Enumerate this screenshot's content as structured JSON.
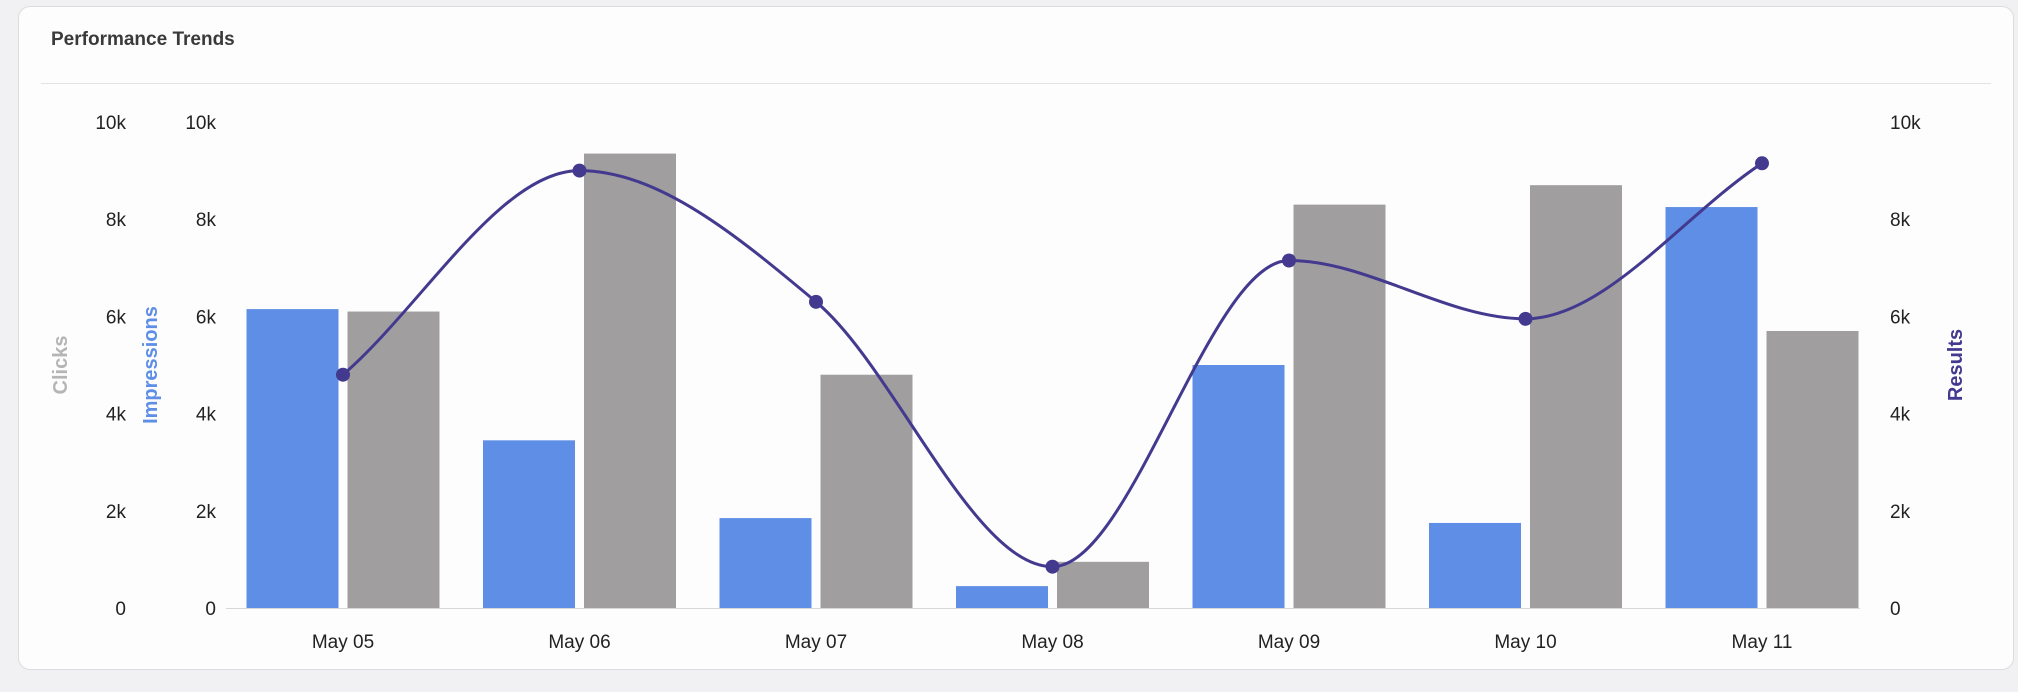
{
  "card": {
    "title": "Performance Trends"
  },
  "colors": {
    "clicks": "#a09e9f",
    "impressions": "#5e8ee5",
    "results": "#433a8f",
    "axis_clicks_title": "#b5b5b5",
    "axis_impressions_title": "#5e8ee5",
    "axis_results_title": "#433a8f"
  },
  "chart_data": {
    "type": "bar",
    "categories": [
      "May 05",
      "May 06",
      "May 07",
      "May 08",
      "May 09",
      "May 10",
      "May 11"
    ],
    "series": [
      {
        "name": "Impressions",
        "type": "bar",
        "axis": "impressions",
        "values": [
          6150,
          3450,
          1850,
          450,
          5000,
          1750,
          8250
        ]
      },
      {
        "name": "Clicks",
        "type": "bar",
        "axis": "clicks",
        "values": [
          6100,
          9350,
          4800,
          950,
          8300,
          8700,
          5700
        ]
      },
      {
        "name": "Results",
        "type": "line",
        "axis": "results",
        "smooth": true,
        "values": [
          4800,
          9000,
          6300,
          850,
          7150,
          5950,
          9150
        ]
      }
    ],
    "axes": {
      "clicks": {
        "title": "Clicks",
        "position": "left-outer",
        "ylim": [
          0,
          10000
        ],
        "ticks": [
          "0",
          "2k",
          "4k",
          "6k",
          "8k",
          "10k"
        ]
      },
      "impressions": {
        "title": "Impressions",
        "position": "left-inner",
        "ylim": [
          0,
          10000
        ],
        "ticks": [
          "0",
          "2k",
          "4k",
          "6k",
          "8k",
          "10k"
        ]
      },
      "results": {
        "title": "Results",
        "position": "right",
        "ylim": [
          0,
          10000
        ],
        "ticks": [
          "0",
          "2k",
          "4k",
          "6k",
          "8k",
          "10k"
        ]
      }
    },
    "grid": false,
    "legend": "none"
  }
}
